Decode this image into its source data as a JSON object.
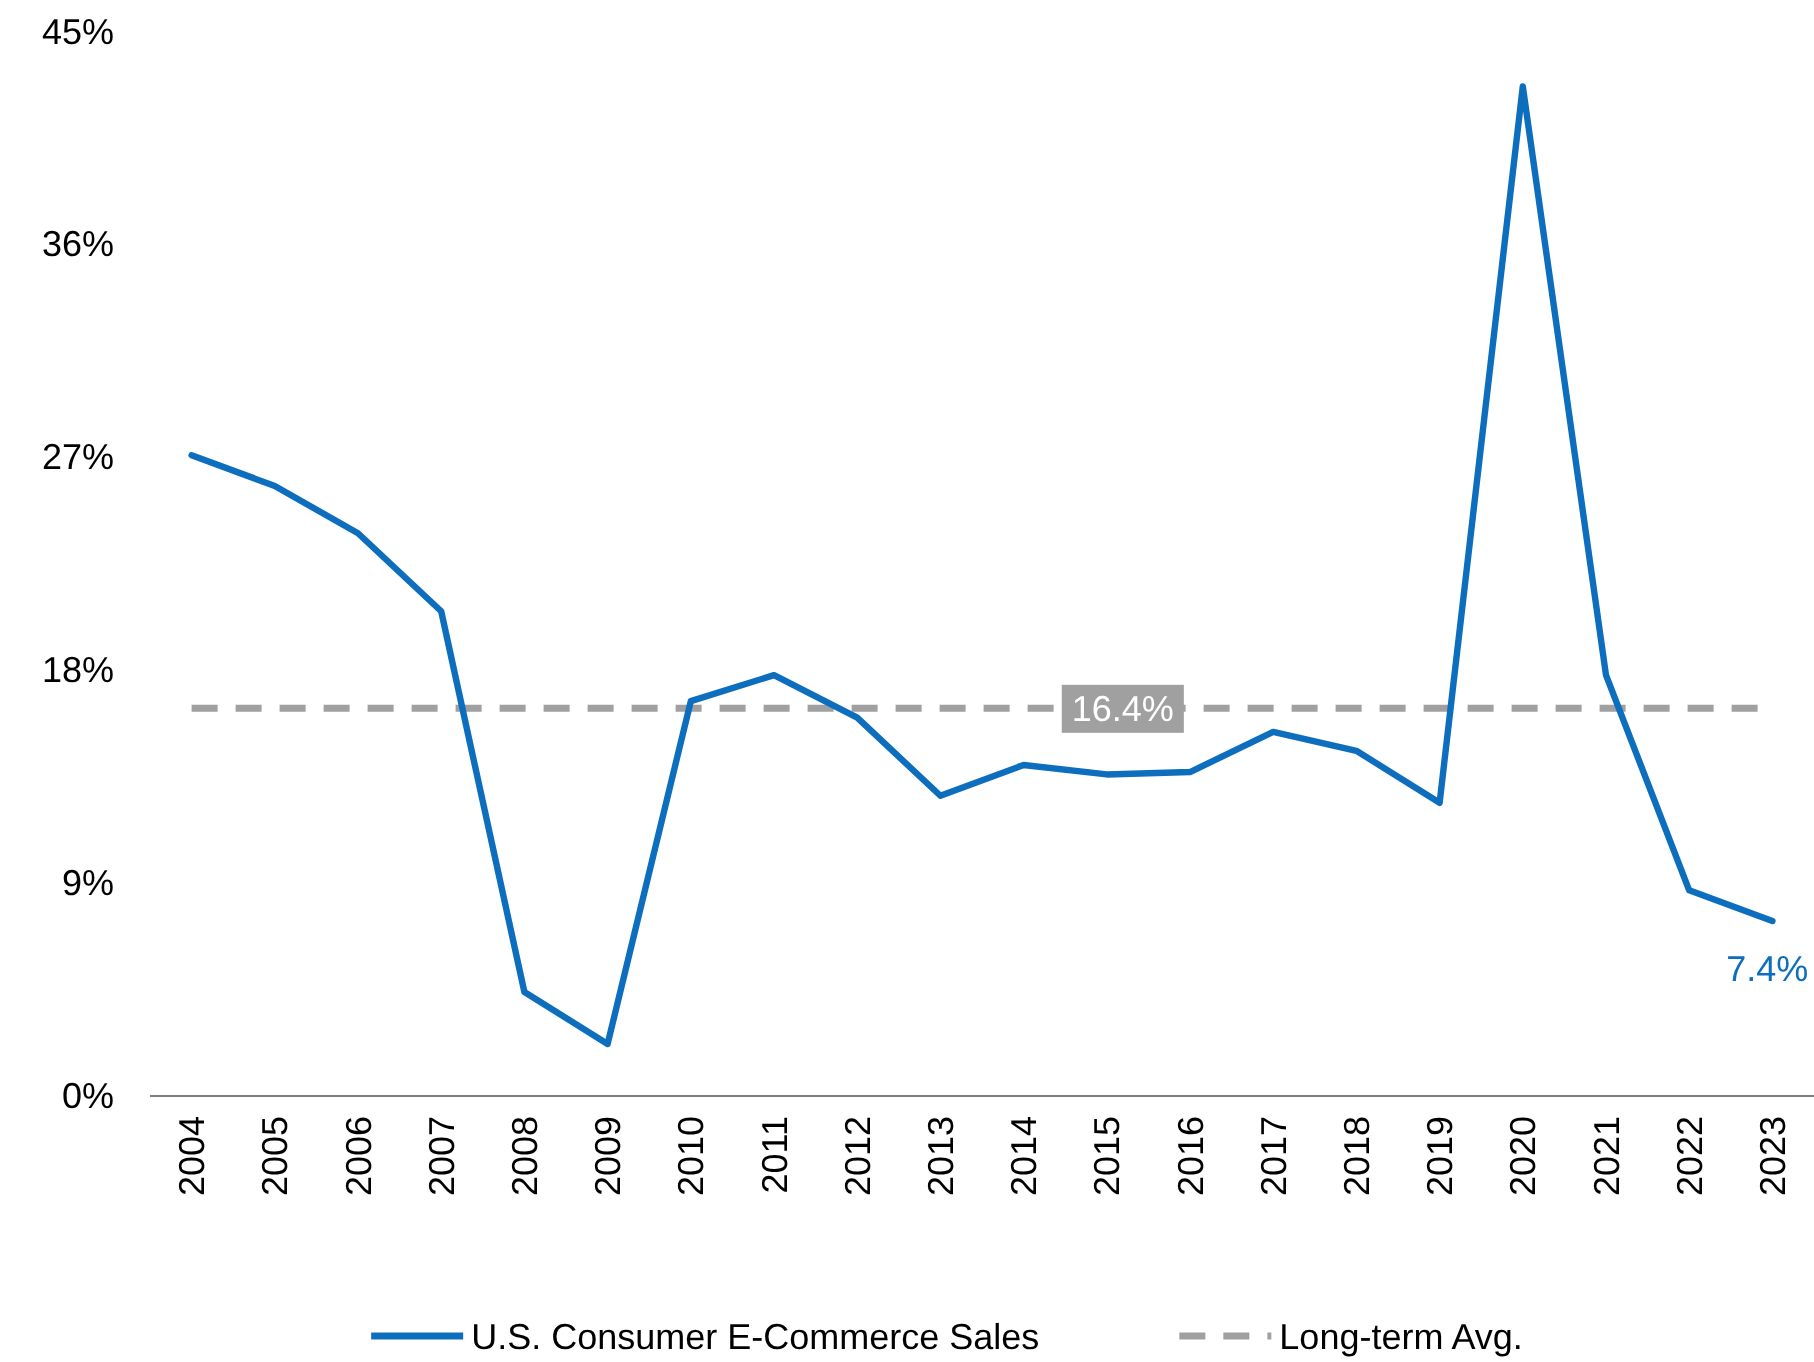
{
  "chart_data": {
    "type": "line",
    "categories": [
      "2004",
      "2005",
      "2006",
      "2007",
      "2008",
      "2009",
      "2010",
      "2011",
      "2012",
      "2013",
      "2014",
      "2015",
      "2016",
      "2017",
      "2018",
      "2019",
      "2020",
      "2021",
      "2022",
      "2023"
    ],
    "series": [
      {
        "name": "U.S. Consumer E-Commerce Sales",
        "color": "#0d6ebe",
        "values": [
          27.1,
          25.8,
          23.8,
          20.5,
          4.4,
          2.2,
          16.7,
          17.8,
          16.0,
          12.7,
          14.0,
          13.6,
          13.7,
          15.4,
          14.6,
          12.4,
          42.7,
          17.8,
          8.7,
          7.4
        ]
      }
    ],
    "ylim": [
      0,
      45
    ],
    "yticks": [
      {
        "value": 0,
        "label": "0%"
      },
      {
        "value": 9,
        "label": "9%"
      },
      {
        "value": 18,
        "label": "18%"
      },
      {
        "value": 27,
        "label": "27%"
      },
      {
        "value": 36,
        "label": "36%"
      },
      {
        "value": 45,
        "label": "45%"
      }
    ],
    "ref_lines": [
      {
        "axis": "y",
        "value": 16.4,
        "label": "Long-term Avg.",
        "color": "#a0a0a0",
        "line_style": "dashed"
      }
    ],
    "annotations": [
      {
        "text": "16.4%",
        "x": "2015",
        "y": 16.4
      },
      {
        "text": "7.4%",
        "x": "2023",
        "y": 7.4
      }
    ],
    "grid": false,
    "legend": "bottom",
    "marker": "none",
    "line_style": "solid"
  }
}
